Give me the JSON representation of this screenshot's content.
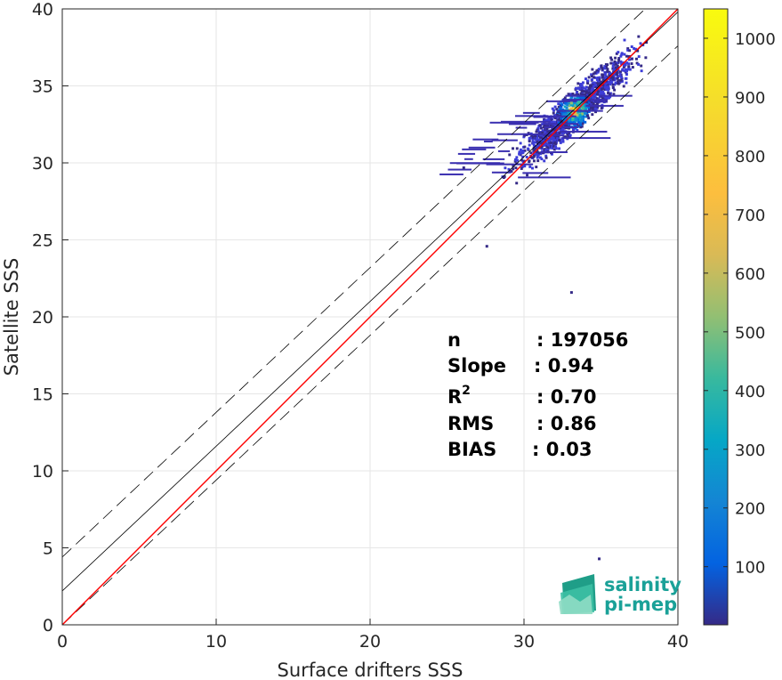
{
  "chart_data": {
    "type": "heatmap",
    "xlabel": "Surface drifters SSS",
    "ylabel": "Satellite SSS",
    "xlim": [
      0,
      40
    ],
    "ylim": [
      0,
      40
    ],
    "x_ticks": [
      0,
      10,
      20,
      30,
      40
    ],
    "y_ticks": [
      0,
      5,
      10,
      15,
      20,
      25,
      30,
      35,
      40
    ],
    "grid": true,
    "colorbar": {
      "range": [
        1,
        1050
      ],
      "ticks": [
        100,
        200,
        300,
        400,
        500,
        600,
        700,
        800,
        900,
        1000
      ],
      "colormap": "parula"
    },
    "density": {
      "center": [
        33.2,
        33.3
      ],
      "principal_axis_slope": 0.94,
      "bins": [
        {
          "x": 33.2,
          "y": 33.4,
          "count": 1050
        },
        {
          "x": 33.0,
          "y": 33.8,
          "count": 700
        },
        {
          "x": 32.8,
          "y": 33.0,
          "count": 420
        },
        {
          "x": 33.6,
          "y": 33.6,
          "count": 380
        },
        {
          "x": 34.2,
          "y": 34.2,
          "count": 220
        },
        {
          "x": 32.2,
          "y": 32.5,
          "count": 150
        },
        {
          "x": 35.0,
          "y": 35.0,
          "count": 90
        },
        {
          "x": 36.0,
          "y": 36.2,
          "count": 40
        },
        {
          "x": 31.0,
          "y": 31.2,
          "count": 15
        },
        {
          "x": 26.0,
          "y": 29.6,
          "count": 1
        },
        {
          "x": 27.5,
          "y": 24.5,
          "count": 1
        },
        {
          "x": 33.0,
          "y": 21.5,
          "count": 1
        },
        {
          "x": 34.8,
          "y": 4.2,
          "count": 1
        }
      ]
    },
    "lines": [
      {
        "id": "one-to-one",
        "color": "#000000",
        "style": "solid",
        "intercept": 0,
        "slope": 1
      },
      {
        "id": "fit",
        "color": "#000000",
        "style": "solid",
        "intercept": 2.2,
        "slope": 0.94
      },
      {
        "id": "fit-upper",
        "color": "#000000",
        "style": "dashed",
        "intercept": 4.4,
        "slope": 0.94
      },
      {
        "id": "fit-lower",
        "color": "#000000",
        "style": "dashed",
        "intercept": 0.0,
        "slope": 0.94
      },
      {
        "id": "reference",
        "color": "#ff0000",
        "style": "solid",
        "intercept": 0,
        "slope": 1
      }
    ],
    "stats": [
      {
        "label": "n",
        "value": ": 197056"
      },
      {
        "label": "Slope",
        "value": ": 0.94"
      },
      {
        "label": "R",
        "sup": "2",
        "value": ": 0.70"
      },
      {
        "label": "RMS",
        "value": ": 0.86"
      },
      {
        "label": "BIAS",
        "value": ": 0.03"
      }
    ]
  },
  "logo": {
    "line1": "salinity",
    "line2": "pi-mep",
    "color": "#1aa198"
  }
}
